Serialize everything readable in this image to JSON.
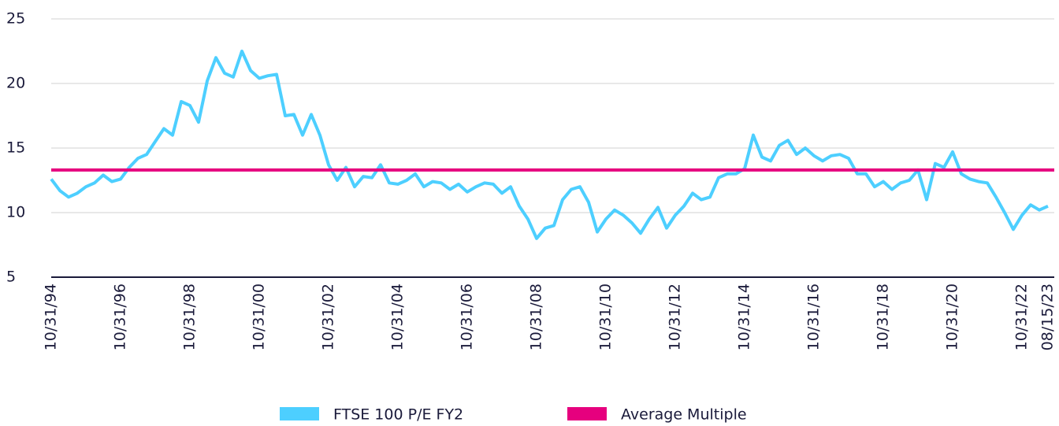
{
  "chart_data": {
    "type": "line",
    "categories": [
      "10/31/94",
      null,
      null,
      null,
      null,
      null,
      null,
      null,
      "10/31/96",
      null,
      null,
      null,
      null,
      null,
      null,
      null,
      "10/31/98",
      null,
      null,
      null,
      null,
      null,
      null,
      null,
      "10/31/00",
      null,
      null,
      null,
      null,
      null,
      null,
      null,
      "10/31/02",
      null,
      null,
      null,
      null,
      null,
      null,
      null,
      "10/31/04",
      null,
      null,
      null,
      null,
      null,
      null,
      null,
      "10/31/06",
      null,
      null,
      null,
      null,
      null,
      null,
      null,
      "10/31/08",
      null,
      null,
      null,
      null,
      null,
      null,
      null,
      "10/31/10",
      null,
      null,
      null,
      null,
      null,
      null,
      null,
      "10/31/12",
      null,
      null,
      null,
      null,
      null,
      null,
      null,
      "10/31/14",
      null,
      null,
      null,
      null,
      null,
      null,
      null,
      "10/31/16",
      null,
      null,
      null,
      null,
      null,
      null,
      null,
      "10/31/18",
      null,
      null,
      null,
      null,
      null,
      null,
      null,
      "10/31/20",
      null,
      null,
      null,
      null,
      null,
      null,
      null,
      "10/31/22",
      null,
      null,
      "08/15/23"
    ],
    "series": [
      {
        "name": "FTSE 100 P/E FY2",
        "color": "#4dcfff",
        "values": [
          12.6,
          11.7,
          11.2,
          11.5,
          12.0,
          12.3,
          12.9,
          12.4,
          12.6,
          13.5,
          14.2,
          14.5,
          15.5,
          16.5,
          16.0,
          18.6,
          18.3,
          17.0,
          20.2,
          22.0,
          20.8,
          20.5,
          22.5,
          21.0,
          20.4,
          20.6,
          20.7,
          17.5,
          17.6,
          16.0,
          17.6,
          16.0,
          13.7,
          12.5,
          13.5,
          12.0,
          12.8,
          12.7,
          13.7,
          12.3,
          12.2,
          12.5,
          13.0,
          12.0,
          12.4,
          12.3,
          11.8,
          12.2,
          11.6,
          12.0,
          12.3,
          12.2,
          11.5,
          12.0,
          10.5,
          9.5,
          8.0,
          8.8,
          9.0,
          11.0,
          11.8,
          12.0,
          10.8,
          8.5,
          9.5,
          10.2,
          9.8,
          9.2,
          8.4,
          9.5,
          10.4,
          8.8,
          9.8,
          10.5,
          11.5,
          11.0,
          11.2,
          12.7,
          13.0,
          13.0,
          13.4,
          16.0,
          14.3,
          14.0,
          15.2,
          15.6,
          14.5,
          15.0,
          14.4,
          14.0,
          14.4,
          14.5,
          14.2,
          13.0,
          13.0,
          12.0,
          12.4,
          11.8,
          12.3,
          12.5,
          13.3,
          11.0,
          13.8,
          13.5,
          14.7,
          13.0,
          12.6,
          12.4,
          12.3,
          11.2,
          10.0,
          8.7,
          9.8,
          10.6,
          10.2,
          10.5
        ]
      }
    ],
    "reference_line": {
      "name": "Average Multiple",
      "color": "#e6007e",
      "value": 13.3
    },
    "ylim": [
      5,
      25
    ],
    "yticks": [
      5,
      10,
      15,
      20,
      25
    ],
    "grid": true
  }
}
